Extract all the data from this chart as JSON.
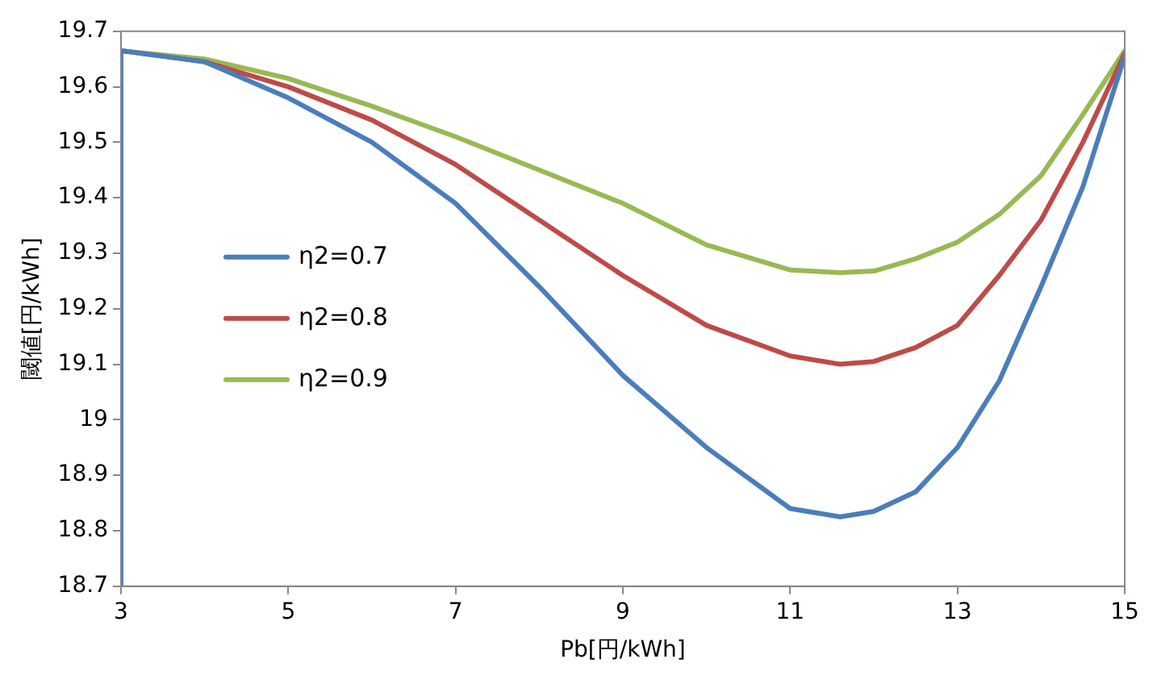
{
  "chart_data": {
    "type": "line",
    "xlabel": "Pb[円/kWh]",
    "ylabel": "閾値[円/kWh]",
    "xlim": [
      3,
      15
    ],
    "xticks": [
      3,
      5,
      7,
      9,
      11,
      13,
      15
    ],
    "ylim": [
      18.7,
      19.7
    ],
    "yticks": [
      18.7,
      18.8,
      18.9,
      19,
      19.1,
      19.2,
      19.3,
      19.4,
      19.5,
      19.6,
      19.7
    ],
    "grid": false,
    "legend": "left",
    "marker": "none",
    "line_style": "solid",
    "series": [
      {
        "name": "η2=0.7",
        "color": "#4a7ebb",
        "x": [
          3,
          3,
          4,
          5,
          6,
          7,
          8,
          9,
          10,
          11,
          11.6,
          12,
          12.5,
          13,
          13.5,
          14,
          14.5,
          15
        ],
        "values": [
          18.7,
          19.665,
          19.645,
          19.58,
          19.5,
          19.39,
          19.24,
          19.08,
          18.95,
          18.84,
          18.825,
          18.835,
          18.87,
          18.95,
          19.07,
          19.24,
          19.42,
          19.655
        ]
      },
      {
        "name": "η2=0.8",
        "color": "#be4b48",
        "x": [
          3,
          4,
          5,
          6,
          7,
          8,
          9,
          10,
          11,
          11.6,
          12,
          12.5,
          13,
          13.5,
          14,
          14.5,
          15
        ],
        "values": [
          19.665,
          19.645,
          19.6,
          19.54,
          19.46,
          19.36,
          19.26,
          19.17,
          19.115,
          19.1,
          19.105,
          19.13,
          19.17,
          19.26,
          19.36,
          19.5,
          19.66
        ]
      },
      {
        "name": "η2=0.9",
        "color": "#98b954",
        "x": [
          3,
          4,
          5,
          6,
          7,
          8,
          9,
          10,
          11,
          11.6,
          12,
          12.5,
          13,
          13.5,
          14,
          14.5,
          15
        ],
        "values": [
          19.665,
          19.65,
          19.615,
          19.565,
          19.51,
          19.45,
          19.39,
          19.315,
          19.27,
          19.265,
          19.268,
          19.29,
          19.32,
          19.37,
          19.44,
          19.55,
          19.665
        ]
      }
    ]
  }
}
